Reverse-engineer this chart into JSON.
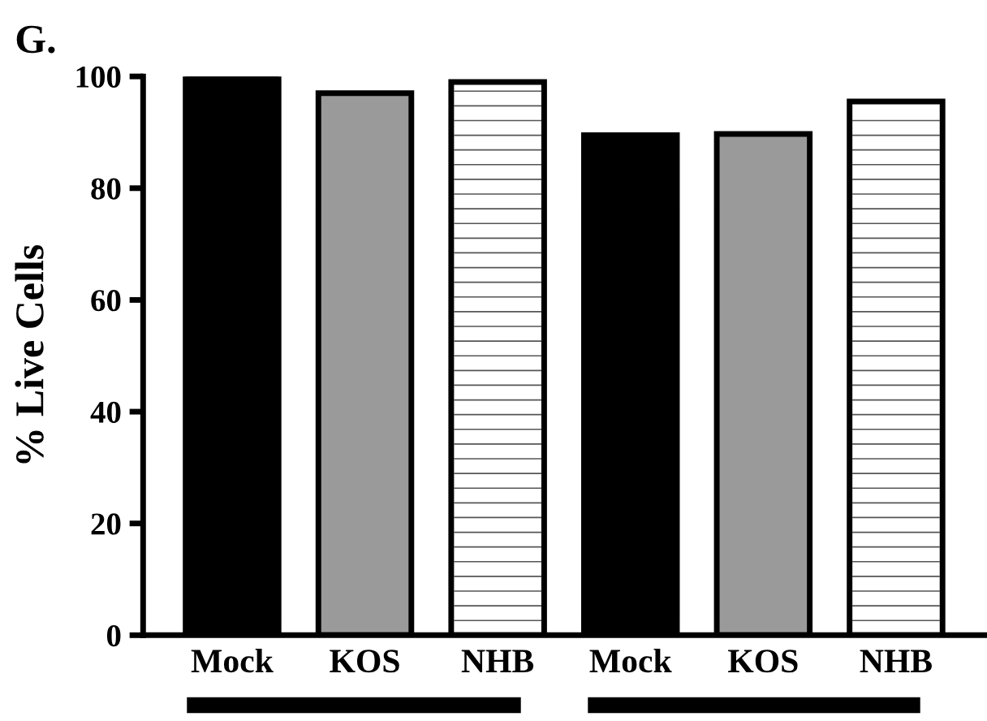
{
  "chart_data": {
    "type": "bar",
    "title": "G.",
    "ylabel": "% Live Cells",
    "categories": [
      "Mock",
      "KOS",
      "NHB",
      "Mock",
      "KOS",
      "NHB"
    ],
    "values": [
      100,
      97,
      99,
      89.5,
      89.7,
      95.5
    ],
    "colors": [
      "#000000",
      "#9a9a9a",
      "#ffffff",
      "#000000",
      "#9a9a9a",
      "#ffffff"
    ],
    "ylim": [
      0,
      100
    ],
    "yticks": [
      0,
      20,
      40,
      60,
      80,
      100
    ],
    "grid": false,
    "legend": false
  }
}
